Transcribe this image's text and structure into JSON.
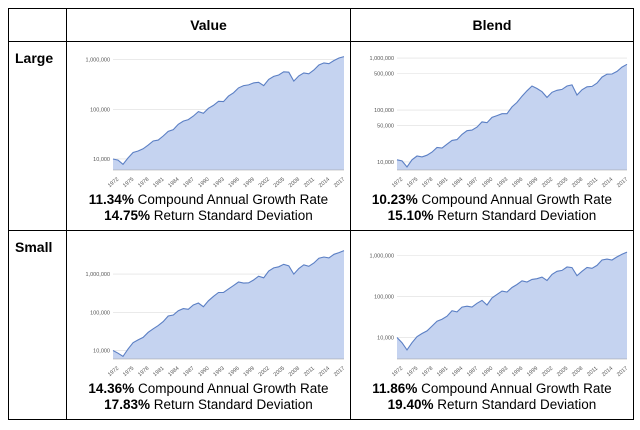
{
  "headers": {
    "value": "Value",
    "blend": "Blend"
  },
  "rows": {
    "large": "Large",
    "small": "Small"
  },
  "chart_data": [
    {
      "type": "area",
      "row": "Large",
      "column": "Value",
      "y_scale": "log",
      "ylim": [
        6000,
        1300000
      ],
      "y_ticks": [
        10000,
        100000,
        1000000
      ],
      "y_tick_labels": [
        "10,000",
        "100,000",
        "1,000,000"
      ],
      "x_ticks": [
        "1972",
        "1975",
        "1978",
        "1981",
        "1984",
        "1987",
        "1990",
        "1993",
        "1996",
        "1999",
        "2002",
        "2005",
        "2008",
        "2011",
        "2014",
        "2017"
      ],
      "x": [
        1972,
        1973,
        1974,
        1975,
        1976,
        1977,
        1978,
        1979,
        1980,
        1981,
        1982,
        1983,
        1984,
        1985,
        1986,
        1987,
        1988,
        1989,
        1990,
        1991,
        1992,
        1993,
        1994,
        1995,
        1996,
        1997,
        1998,
        1999,
        2000,
        2001,
        2002,
        2003,
        2004,
        2005,
        2006,
        2007,
        2008,
        2009,
        2010,
        2011,
        2012,
        2013,
        2014,
        2015,
        2016,
        2017,
        2018
      ],
      "values": [
        10000,
        9500,
        7800,
        10500,
        13500,
        14500,
        16000,
        19000,
        23000,
        24000,
        29000,
        36000,
        39000,
        50000,
        58000,
        62000,
        73000,
        90000,
        83000,
        105000,
        120000,
        145000,
        143000,
        185000,
        215000,
        270000,
        300000,
        310000,
        340000,
        350000,
        300000,
        400000,
        460000,
        490000,
        570000,
        560000,
        370000,
        470000,
        540000,
        520000,
        620000,
        780000,
        860000,
        830000,
        960000,
        1080000,
        1150000
      ],
      "stats": {
        "cagr": "11.34%",
        "cagr_label": " Compound Annual Growth Rate",
        "sd": "14.75%",
        "sd_label": " Return Standard Deviation"
      },
      "fill": "#c5d3f0",
      "line": "#5b7fc4"
    },
    {
      "type": "area",
      "row": "Large",
      "column": "Blend",
      "y_scale": "log",
      "ylim": [
        7000,
        1200000
      ],
      "y_ticks": [
        10000,
        50000,
        100000,
        500000,
        1000000
      ],
      "y_tick_labels": [
        "10,000",
        "50,000",
        "100,000",
        "500,000",
        "1,000,000"
      ],
      "x_ticks": [
        "1972",
        "1975",
        "1978",
        "1981",
        "1984",
        "1987",
        "1990",
        "1993",
        "1996",
        "1999",
        "2002",
        "2005",
        "2008",
        "2011",
        "2014",
        "2017"
      ],
      "x": [
        1972,
        1973,
        1974,
        1975,
        1976,
        1977,
        1978,
        1979,
        1980,
        1981,
        1982,
        1983,
        1984,
        1985,
        1986,
        1987,
        1988,
        1989,
        1990,
        1991,
        1992,
        1993,
        1994,
        1995,
        1996,
        1997,
        1998,
        1999,
        2000,
        2001,
        2002,
        2003,
        2004,
        2005,
        2006,
        2007,
        2008,
        2009,
        2010,
        2011,
        2012,
        2013,
        2014,
        2015,
        2016,
        2017,
        2018
      ],
      "values": [
        11000,
        10500,
        8000,
        11000,
        13000,
        12500,
        13500,
        15500,
        19000,
        18500,
        22000,
        26000,
        27000,
        34000,
        40000,
        41000,
        47000,
        59000,
        57000,
        72000,
        78000,
        85000,
        85000,
        115000,
        140000,
        185000,
        235000,
        290000,
        260000,
        225000,
        175000,
        220000,
        240000,
        250000,
        290000,
        305000,
        195000,
        245000,
        280000,
        285000,
        330000,
        430000,
        490000,
        495000,
        555000,
        670000,
        760000
      ],
      "stats": {
        "cagr": "10.23%",
        "cagr_label": " Compound Annual Growth Rate",
        "sd": "15.10%",
        "sd_label": " Return Standard Deviation"
      },
      "fill": "#c5d3f0",
      "line": "#5b7fc4"
    },
    {
      "type": "area",
      "row": "Small",
      "column": "Value",
      "y_scale": "log",
      "ylim": [
        6000,
        6500000
      ],
      "y_ticks": [
        10000,
        100000,
        1000000
      ],
      "y_tick_labels": [
        "10,000",
        "100,000",
        "1,000,000"
      ],
      "x_ticks": [
        "1972",
        "1975",
        "1978",
        "1981",
        "1984",
        "1987",
        "1990",
        "1993",
        "1996",
        "1999",
        "2002",
        "2005",
        "2008",
        "2011",
        "2014",
        "2017"
      ],
      "x": [
        1972,
        1973,
        1974,
        1975,
        1976,
        1977,
        1978,
        1979,
        1980,
        1981,
        1982,
        1983,
        1984,
        1985,
        1986,
        1987,
        1988,
        1989,
        1990,
        1991,
        1992,
        1993,
        1994,
        1995,
        1996,
        1997,
        1998,
        1999,
        2000,
        2001,
        2002,
        2003,
        2004,
        2005,
        2006,
        2007,
        2008,
        2009,
        2010,
        2011,
        2012,
        2013,
        2014,
        2015,
        2016,
        2017,
        2018
      ],
      "values": [
        10000,
        8500,
        7000,
        11000,
        16000,
        19000,
        22000,
        30000,
        37000,
        45000,
        57000,
        80000,
        85000,
        110000,
        125000,
        120000,
        155000,
        175000,
        140000,
        200000,
        260000,
        330000,
        330000,
        410000,
        500000,
        620000,
        580000,
        590000,
        700000,
        880000,
        800000,
        1200000,
        1450000,
        1550000,
        1800000,
        1650000,
        1000000,
        1400000,
        1750000,
        1600000,
        1950000,
        2600000,
        2800000,
        2650000,
        3300000,
        3650000,
        4100000
      ],
      "stats": {
        "cagr": "14.36%",
        "cagr_label": " Compound Annual Growth Rate",
        "sd": "17.83%",
        "sd_label": " Return Standard Deviation"
      },
      "fill": "#c5d3f0",
      "line": "#5b7fc4"
    },
    {
      "type": "area",
      "row": "Small",
      "column": "Blend",
      "y_scale": "log",
      "ylim": [
        3000,
        2000000
      ],
      "y_ticks": [
        10000,
        100000,
        1000000
      ],
      "y_tick_labels": [
        "10,000",
        "100,000",
        "1,000,000"
      ],
      "x_ticks": [
        "1972",
        "1975",
        "1978",
        "1981",
        "1984",
        "1987",
        "1990",
        "1993",
        "1996",
        "1999",
        "2002",
        "2005",
        "2008",
        "2011",
        "2014",
        "2017"
      ],
      "x": [
        1972,
        1973,
        1974,
        1975,
        1976,
        1977,
        1978,
        1979,
        1980,
        1981,
        1982,
        1983,
        1984,
        1985,
        1986,
        1987,
        1988,
        1989,
        1990,
        1991,
        1992,
        1993,
        1994,
        1995,
        1996,
        1997,
        1998,
        1999,
        2000,
        2001,
        2002,
        2003,
        2004,
        2005,
        2006,
        2007,
        2008,
        2009,
        2010,
        2011,
        2012,
        2013,
        2014,
        2015,
        2016,
        2017,
        2018
      ],
      "values": [
        10000,
        7500,
        5000,
        7500,
        10500,
        12500,
        14500,
        19000,
        25000,
        28000,
        33000,
        45000,
        42000,
        55000,
        58000,
        55000,
        68000,
        80000,
        62000,
        92000,
        112000,
        135000,
        128000,
        165000,
        195000,
        240000,
        225000,
        260000,
        270000,
        295000,
        245000,
        345000,
        410000,
        430000,
        520000,
        505000,
        320000,
        410000,
        510000,
        485000,
        570000,
        770000,
        810000,
        770000,
        920000,
        1060000,
        1200000
      ],
      "stats": {
        "cagr": "11.86%",
        "cagr_label": " Compound Annual Growth Rate",
        "sd": "19.40%",
        "sd_label": " Return Standard Deviation"
      },
      "fill": "#c5d3f0",
      "line": "#5b7fc4"
    }
  ]
}
